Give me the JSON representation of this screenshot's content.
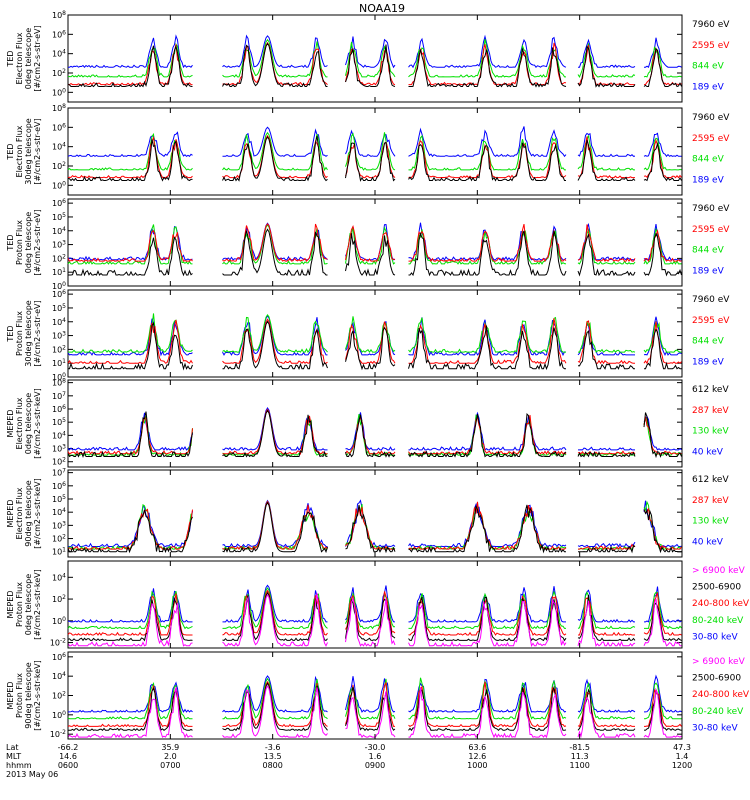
{
  "title": "NOAA19",
  "colors": {
    "black": "#000000",
    "red": "#ff0000",
    "green": "#00e000",
    "blue": "#0000ff",
    "magenta": "#ff00ff"
  },
  "chart_data": [
    {
      "type": "line",
      "ylabels": [
        "TED",
        "Electron Flux",
        "0deg telescope",
        "[#/cm2-s-str-eV]"
      ],
      "yticks": [
        "10^8",
        "10^6",
        "10^4",
        "10^2",
        "10^0"
      ],
      "ylim_log10": [
        -1,
        8
      ],
      "series": [
        {
          "name": "7960 eV",
          "color": "#000000",
          "level": 0.6
        },
        {
          "name": "2595 eV",
          "color": "#ff0000",
          "level": 0.8
        },
        {
          "name": "844 eV",
          "color": "#00e000",
          "level": 1.6
        },
        {
          "name": "189 eV",
          "color": "#0000ff",
          "level": 2.6
        }
      ]
    },
    {
      "type": "line",
      "ylabels": [
        "TED",
        "Electron Flux",
        "30deg telescope",
        "[#/cm2-s-str-eV]"
      ],
      "yticks": [
        "10^8",
        "10^6",
        "10^4",
        "10^2",
        "10^0"
      ],
      "ylim_log10": [
        -1,
        8
      ],
      "series": [
        {
          "name": "7960 eV",
          "color": "#000000",
          "level": 0.5
        },
        {
          "name": "2595 eV",
          "color": "#ff0000",
          "level": 0.8
        },
        {
          "name": "844 eV",
          "color": "#00e000",
          "level": 1.6
        },
        {
          "name": "189 eV",
          "color": "#0000ff",
          "level": 3.0
        }
      ]
    },
    {
      "type": "line",
      "ylabels": [
        "TED",
        "Proton Flux",
        "0deg telescope",
        "[#/cm2-s-str-eV]"
      ],
      "yticks": [
        "10^6",
        "10^5",
        "10^4",
        "10^3",
        "10^2",
        "10^1",
        "10^0"
      ],
      "ylim_log10": [
        0,
        6.3
      ],
      "series": [
        {
          "name": "7960 eV",
          "color": "#000000",
          "level": 0.8
        },
        {
          "name": "2595 eV",
          "color": "#ff0000",
          "level": 1.8
        },
        {
          "name": "844 eV",
          "color": "#00e000",
          "level": 1.6
        },
        {
          "name": "189 eV",
          "color": "#0000ff",
          "level": 1.9
        }
      ]
    },
    {
      "type": "line",
      "ylabels": [
        "TED",
        "Proton Flux",
        "30deg telescope",
        "[#/cm2-s-str-eV]"
      ],
      "yticks": [
        "10^6",
        "10^5",
        "10^4",
        "10^3",
        "10^2",
        "10^1",
        "10^0"
      ],
      "ylim_log10": [
        0,
        6.3
      ],
      "series": [
        {
          "name": "7960 eV",
          "color": "#000000",
          "level": 0.6
        },
        {
          "name": "2595 eV",
          "color": "#ff0000",
          "level": 1.0
        },
        {
          "name": "844 eV",
          "color": "#00e000",
          "level": 1.8
        },
        {
          "name": "189 eV",
          "color": "#0000ff",
          "level": 1.6
        }
      ]
    },
    {
      "type": "line",
      "ylabels": [
        "MEPED",
        "Electron Flux",
        "0deg telescope",
        "[#/cm2-s-str-keV]"
      ],
      "yticks": [
        "10^8",
        "10^7",
        "10^6",
        "10^5",
        "10^4",
        "10^3",
        "10^2"
      ],
      "ylim_log10": [
        1.6,
        8.2
      ],
      "series": [
        {
          "name": "612 keV",
          "color": "#000000",
          "level": 2.4
        },
        {
          "name": "287 keV",
          "color": "#ff0000",
          "level": 2.6
        },
        {
          "name": "130 keV",
          "color": "#00e000",
          "level": 2.5
        },
        {
          "name": "40 keV",
          "color": "#0000ff",
          "level": 2.9
        }
      ]
    },
    {
      "type": "line",
      "ylabels": [
        "MEPED",
        "Electron Flux",
        "90deg telescope",
        "[#/cm2-s-str-keV]"
      ],
      "yticks": [
        "10^7",
        "10^6",
        "10^5",
        "10^4",
        "10^3",
        "10^2",
        "10^1"
      ],
      "ylim_log10": [
        0.6,
        7.2
      ],
      "series": [
        {
          "name": "612 keV",
          "color": "#000000",
          "level": 1.0
        },
        {
          "name": "287 keV",
          "color": "#ff0000",
          "level": 1.2
        },
        {
          "name": "130 keV",
          "color": "#00e000",
          "level": 1.2
        },
        {
          "name": "40 keV",
          "color": "#0000ff",
          "level": 1.4
        }
      ]
    },
    {
      "type": "line",
      "ylabels": [
        "MEPED",
        "Proton Flux",
        "0deg telescope",
        "[#/cm2-s-str-keV]"
      ],
      "yticks": [
        "10^4",
        "10^2",
        "10^0",
        "10^-2"
      ],
      "ylim_log10": [
        -2.5,
        5.5
      ],
      "series": [
        {
          "name": "> 6900 keV",
          "color": "#ff00ff",
          "level": -2.3
        },
        {
          "name": "2500-6900",
          "color": "#000000",
          "level": -1.8
        },
        {
          "name": "240-800 keV",
          "color": "#ff0000",
          "level": -1.3
        },
        {
          "name": "80-240 keV",
          "color": "#00e000",
          "level": -0.7
        },
        {
          "name": "30-80 keV",
          "color": "#0000ff",
          "level": -0.1
        }
      ]
    },
    {
      "type": "line",
      "ylabels": [
        "MEPED",
        "Proton Flux",
        "90deg telescope",
        "[#/cm2-s-str-keV]"
      ],
      "yticks": [
        "10^6",
        "10^4",
        "10^2",
        "10^0",
        "10^-2"
      ],
      "ylim_log10": [
        -2.5,
        6.5
      ],
      "series": [
        {
          "name": "> 6900 keV",
          "color": "#ff00ff",
          "level": -2.3
        },
        {
          "name": "2500-6900",
          "color": "#000000",
          "level": -1.6
        },
        {
          "name": "240-800 keV",
          "color": "#ff0000",
          "level": -1.2
        },
        {
          "name": "80-240 keV",
          "color": "#00e000",
          "level": -0.4
        },
        {
          "name": "30-80 keV",
          "color": "#0000ff",
          "level": 0.3
        }
      ]
    }
  ],
  "xaxis": {
    "row_labels": [
      "Lat",
      "MLT",
      "hhmm",
      "2013 May 06"
    ],
    "ticks": [
      {
        "lat": "-66.2",
        "mlt": "14.6",
        "hhmm": "0600"
      },
      {
        "lat": "35.9",
        "mlt": "2.0",
        "hhmm": "0700"
      },
      {
        "lat": "-3.6",
        "mlt": "13.5",
        "hhmm": "0800"
      },
      {
        "lat": "-30.0",
        "mlt": "1.6",
        "hhmm": "0900"
      },
      {
        "lat": "63.6",
        "mlt": "12.6",
        "hhmm": "1000"
      },
      {
        "lat": "-81.5",
        "mlt": "11.3",
        "hhmm": "1100"
      },
      {
        "lat": "47.3",
        "mlt": "1.4",
        "hhmm": "1200"
      }
    ]
  },
  "passes_hours": [
    0.83,
    1.05,
    1.38,
    1.75,
    2.43,
    2.78,
    3.1,
    3.45,
    4.08,
    4.45,
    4.75,
    5.08,
    5.75,
    6.1,
    6.4,
    6.75
  ],
  "slot_hours": [
    0.75,
    1.25,
    2.35,
    2.85,
    4.0,
    4.5,
    5.65,
    6.2
  ],
  "gap_hours": [
    [
      1.22,
      1.5
    ],
    [
      2.55,
      2.7
    ],
    [
      3.2,
      3.32
    ],
    [
      4.88,
      4.98
    ],
    [
      5.55,
      5.62
    ]
  ],
  "dome_hour": 1.95
}
